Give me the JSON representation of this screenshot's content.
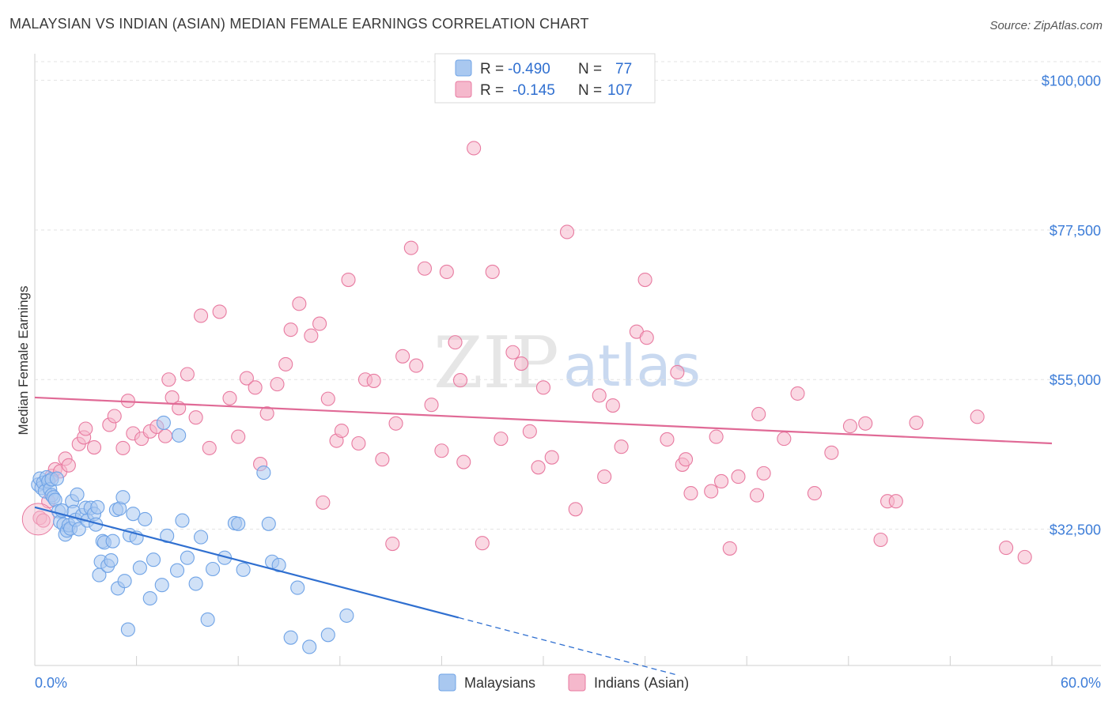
{
  "header": {
    "title": "MALAYSIAN VS INDIAN (ASIAN) MEDIAN FEMALE EARNINGS CORRELATION CHART",
    "source": "Source: ZipAtlas.com"
  },
  "watermark": {
    "zip": "ZIP",
    "atlas": "atlas"
  },
  "legend": {
    "rows": [
      {
        "r_label": "R =",
        "r_value": "-0.490",
        "n_label": "N =",
        "n_value": "77",
        "color": "#a9c8f0"
      },
      {
        "r_label": "R =",
        "r_value": "-0.145",
        "n_label": "N =",
        "n_value": "107",
        "color": "#f5b8cc"
      }
    ]
  },
  "bottom_legend": {
    "items": [
      {
        "label": "Malaysians",
        "color": "#a9c8f0"
      },
      {
        "label": "Indians (Asian)",
        "color": "#f5b8cc"
      }
    ]
  },
  "chart_data": {
    "type": "scatter",
    "title": "MALAYSIAN VS INDIAN (ASIAN) MEDIAN FEMALE EARNINGS CORRELATION CHART",
    "xlabel": "",
    "ylabel": "Median Female Earnings",
    "xlim": [
      0,
      60
    ],
    "ylim": [
      12000,
      104000
    ],
    "x_tick_labels": [
      "0.0%",
      "60.0%"
    ],
    "y_ticks": [
      32500,
      55000,
      77500,
      100000
    ],
    "y_tick_labels": [
      "$32,500",
      "$55,000",
      "$77,500",
      "$100,000"
    ],
    "grid": true,
    "legend_position": "top-center",
    "series": [
      {
        "name": "Malaysians",
        "color": "#6fa3e6",
        "fill": "#a9c8f0",
        "trend": {
          "x0": 0,
          "y0": 35800,
          "x1": 25,
          "y1": 19200,
          "dash_to_x": 38,
          "dash_to_y": 10500
        },
        "points": [
          [
            0.2,
            39200
          ],
          [
            0.3,
            40100
          ],
          [
            0.4,
            38700
          ],
          [
            0.5,
            39500
          ],
          [
            0.6,
            38200
          ],
          [
            0.7,
            40300
          ],
          [
            0.8,
            39700
          ],
          [
            0.9,
            38500
          ],
          [
            1.0,
            37600
          ],
          [
            1.0,
            40000
          ],
          [
            1.1,
            37300
          ],
          [
            1.2,
            36900
          ],
          [
            1.3,
            40100
          ],
          [
            1.4,
            35200
          ],
          [
            1.5,
            33600
          ],
          [
            1.6,
            35300
          ],
          [
            1.7,
            33200
          ],
          [
            1.8,
            31700
          ],
          [
            1.9,
            32300
          ],
          [
            2.0,
            33100
          ],
          [
            2.1,
            32600
          ],
          [
            2.2,
            36700
          ],
          [
            2.3,
            35100
          ],
          [
            2.4,
            33900
          ],
          [
            2.5,
            37700
          ],
          [
            2.6,
            32500
          ],
          [
            2.8,
            34600
          ],
          [
            3.0,
            35700
          ],
          [
            3.1,
            33800
          ],
          [
            3.3,
            35700
          ],
          [
            3.5,
            34800
          ],
          [
            3.6,
            33200
          ],
          [
            3.7,
            35800
          ],
          [
            3.8,
            25600
          ],
          [
            3.9,
            27600
          ],
          [
            4.0,
            30700
          ],
          [
            4.1,
            30500
          ],
          [
            4.3,
            27000
          ],
          [
            4.5,
            27800
          ],
          [
            4.6,
            30700
          ],
          [
            4.8,
            35400
          ],
          [
            4.9,
            23600
          ],
          [
            5.0,
            35600
          ],
          [
            5.2,
            37300
          ],
          [
            5.3,
            24700
          ],
          [
            5.5,
            17400
          ],
          [
            5.6,
            31600
          ],
          [
            5.8,
            34800
          ],
          [
            6.0,
            31200
          ],
          [
            6.2,
            26700
          ],
          [
            6.5,
            34000
          ],
          [
            6.8,
            22100
          ],
          [
            7.0,
            27900
          ],
          [
            7.5,
            24100
          ],
          [
            7.6,
            48500
          ],
          [
            7.8,
            31500
          ],
          [
            8.4,
            26300
          ],
          [
            8.5,
            46600
          ],
          [
            8.7,
            33800
          ],
          [
            9.0,
            28200
          ],
          [
            9.5,
            24300
          ],
          [
            9.8,
            31300
          ],
          [
            10.2,
            18900
          ],
          [
            10.5,
            26500
          ],
          [
            11.2,
            28200
          ],
          [
            11.8,
            33400
          ],
          [
            12.0,
            33300
          ],
          [
            12.3,
            26400
          ],
          [
            13.5,
            41000
          ],
          [
            13.8,
            33300
          ],
          [
            14.0,
            27600
          ],
          [
            14.4,
            27100
          ],
          [
            15.1,
            16200
          ],
          [
            15.5,
            23700
          ],
          [
            16.2,
            14800
          ],
          [
            17.3,
            16600
          ],
          [
            18.4,
            19500
          ]
        ]
      },
      {
        "name": "Indians (Asian)",
        "color": "#e87aa0",
        "fill": "#f5b8cc",
        "trend": {
          "x0": 0,
          "y0": 52300,
          "x1": 60,
          "y1": 45400
        },
        "points": [
          [
            0.3,
            34200
          ],
          [
            0.5,
            33800
          ],
          [
            0.8,
            36700
          ],
          [
            1.0,
            40500
          ],
          [
            1.2,
            41500
          ],
          [
            1.5,
            41200
          ],
          [
            1.8,
            43100
          ],
          [
            2.0,
            42100
          ],
          [
            2.6,
            45300
          ],
          [
            2.9,
            46300
          ],
          [
            3.0,
            47600
          ],
          [
            3.5,
            44800
          ],
          [
            4.4,
            48200
          ],
          [
            4.7,
            49500
          ],
          [
            5.2,
            44700
          ],
          [
            5.5,
            51800
          ],
          [
            5.8,
            46900
          ],
          [
            6.3,
            46100
          ],
          [
            6.8,
            47200
          ],
          [
            7.2,
            47900
          ],
          [
            7.7,
            46500
          ],
          [
            7.9,
            55000
          ],
          [
            8.1,
            52300
          ],
          [
            8.5,
            50700
          ],
          [
            9.0,
            55800
          ],
          [
            9.5,
            49300
          ],
          [
            9.8,
            64600
          ],
          [
            10.3,
            44700
          ],
          [
            10.9,
            65200
          ],
          [
            11.5,
            52200
          ],
          [
            12.0,
            46400
          ],
          [
            12.5,
            55200
          ],
          [
            13.0,
            53800
          ],
          [
            13.3,
            42300
          ],
          [
            13.7,
            49900
          ],
          [
            14.3,
            54300
          ],
          [
            14.8,
            57300
          ],
          [
            15.1,
            62500
          ],
          [
            15.6,
            66400
          ],
          [
            16.3,
            61600
          ],
          [
            16.8,
            63400
          ],
          [
            17.0,
            36500
          ],
          [
            17.3,
            52100
          ],
          [
            17.8,
            45800
          ],
          [
            18.1,
            47300
          ],
          [
            18.5,
            70000
          ],
          [
            19.1,
            45400
          ],
          [
            19.5,
            55000
          ],
          [
            20.0,
            54800
          ],
          [
            20.5,
            43000
          ],
          [
            21.1,
            30300
          ],
          [
            21.3,
            48400
          ],
          [
            21.7,
            58500
          ],
          [
            22.2,
            74800
          ],
          [
            22.5,
            57100
          ],
          [
            23.0,
            71700
          ],
          [
            23.4,
            51200
          ],
          [
            24.0,
            44300
          ],
          [
            24.3,
            71200
          ],
          [
            24.8,
            60600
          ],
          [
            25.1,
            54900
          ],
          [
            25.3,
            42600
          ],
          [
            25.9,
            89800
          ],
          [
            26.4,
            30400
          ],
          [
            27.0,
            71200
          ],
          [
            27.5,
            46100
          ],
          [
            28.2,
            59100
          ],
          [
            28.7,
            57400
          ],
          [
            29.2,
            47200
          ],
          [
            29.7,
            41800
          ],
          [
            30.0,
            53800
          ],
          [
            30.5,
            43300
          ],
          [
            31.4,
            77200
          ],
          [
            31.9,
            35500
          ],
          [
            33.3,
            52600
          ],
          [
            33.6,
            40400
          ],
          [
            34.1,
            51100
          ],
          [
            34.6,
            44900
          ],
          [
            35.5,
            62200
          ],
          [
            36.0,
            70000
          ],
          [
            36.1,
            61300
          ],
          [
            37.3,
            46000
          ],
          [
            37.9,
            56100
          ],
          [
            38.2,
            42200
          ],
          [
            38.4,
            43000
          ],
          [
            38.7,
            37900
          ],
          [
            39.9,
            38200
          ],
          [
            40.2,
            46400
          ],
          [
            40.5,
            39700
          ],
          [
            41.0,
            29600
          ],
          [
            41.5,
            40400
          ],
          [
            42.6,
            37600
          ],
          [
            42.7,
            49800
          ],
          [
            43.0,
            40900
          ],
          [
            44.2,
            46100
          ],
          [
            45.0,
            52900
          ],
          [
            46.0,
            37900
          ],
          [
            47.0,
            44000
          ],
          [
            48.1,
            48000
          ],
          [
            49.0,
            48400
          ],
          [
            49.9,
            30900
          ],
          [
            50.3,
            36700
          ],
          [
            50.8,
            36700
          ],
          [
            52.0,
            48500
          ],
          [
            55.6,
            49400
          ],
          [
            57.3,
            29700
          ],
          [
            58.4,
            28300
          ]
        ]
      }
    ]
  }
}
